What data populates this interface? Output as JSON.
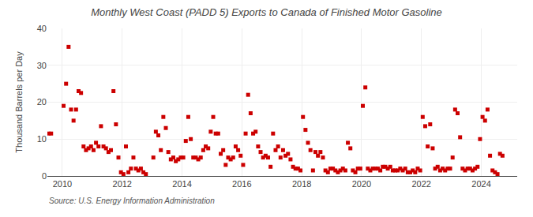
{
  "chart_data": {
    "type": "scatter",
    "title": "Monthly West Coast (PADD 5) Exports to Canada of Finished Motor Gasoline",
    "ylabel": "Thousand Barrels per Day",
    "annotations": [
      "Source: U.S. Energy Information Administration"
    ],
    "color": "#cc0000",
    "marker": "square",
    "grid": true,
    "xlim": [
      2009.5,
      2025.2
    ],
    "xticks": [
      2010,
      2012,
      2014,
      2016,
      2018,
      2020,
      2022,
      2024
    ],
    "ylim": [
      0,
      40
    ],
    "yticks": [
      0,
      10,
      20,
      30,
      40
    ],
    "x": [
      2009.541667,
      2009.625,
      2010.041667,
      2010.125,
      2010.208333,
      2010.291667,
      2010.375,
      2010.458333,
      2010.541667,
      2010.625,
      2010.708333,
      2010.791667,
      2010.875,
      2010.958333,
      2011.041667,
      2011.125,
      2011.208333,
      2011.291667,
      2011.375,
      2011.458333,
      2011.541667,
      2011.625,
      2011.708333,
      2011.791667,
      2011.875,
      2011.958333,
      2012.041667,
      2012.125,
      2012.208333,
      2012.291667,
      2012.375,
      2012.458333,
      2012.541667,
      2012.625,
      2012.708333,
      2012.791667,
      2013.041667,
      2013.125,
      2013.208333,
      2013.291667,
      2013.375,
      2013.458333,
      2013.541667,
      2013.625,
      2013.708333,
      2013.791667,
      2013.875,
      2013.958333,
      2014.041667,
      2014.125,
      2014.208333,
      2014.291667,
      2014.375,
      2014.458333,
      2014.541667,
      2014.625,
      2014.708333,
      2014.791667,
      2014.875,
      2014.958333,
      2015.041667,
      2015.125,
      2015.208333,
      2015.291667,
      2015.375,
      2015.458333,
      2015.541667,
      2015.625,
      2015.708333,
      2015.791667,
      2015.875,
      2015.958333,
      2016.041667,
      2016.125,
      2016.208333,
      2016.291667,
      2016.375,
      2016.458333,
      2016.541667,
      2016.625,
      2016.708333,
      2016.791667,
      2016.875,
      2016.958333,
      2017.041667,
      2017.125,
      2017.208333,
      2017.291667,
      2017.375,
      2017.458333,
      2017.541667,
      2017.625,
      2017.708333,
      2017.791667,
      2017.875,
      2017.958333,
      2018.041667,
      2018.125,
      2018.208333,
      2018.291667,
      2018.375,
      2018.458333,
      2018.541667,
      2018.625,
      2018.708333,
      2018.791667,
      2018.875,
      2018.958333,
      2019.041667,
      2019.125,
      2019.208333,
      2019.291667,
      2019.375,
      2019.458333,
      2019.541667,
      2019.625,
      2019.708333,
      2019.791667,
      2019.875,
      2019.958333,
      2020.041667,
      2020.125,
      2020.208333,
      2020.291667,
      2020.375,
      2020.458333,
      2020.541667,
      2020.625,
      2020.708333,
      2020.791667,
      2020.875,
      2020.958333,
      2021.041667,
      2021.125,
      2021.208333,
      2021.291667,
      2021.375,
      2021.458333,
      2021.541667,
      2021.625,
      2021.708333,
      2021.791667,
      2021.875,
      2021.958333,
      2022.041667,
      2022.125,
      2022.208333,
      2022.291667,
      2022.375,
      2022.458333,
      2022.541667,
      2022.625,
      2022.708333,
      2022.791667,
      2022.875,
      2022.958333,
      2023.041667,
      2023.125,
      2023.208333,
      2023.291667,
      2023.375,
      2023.458333,
      2023.541667,
      2023.625,
      2023.708333,
      2023.791667,
      2023.875,
      2023.958333,
      2024.041667,
      2024.125,
      2024.208333,
      2024.291667,
      2024.375,
      2024.458333,
      2024.541667,
      2024.625,
      2024.708333
    ],
    "values": [
      11.5,
      11.5,
      19.0,
      25.0,
      35.0,
      18.0,
      15.0,
      18.0,
      23.0,
      22.5,
      8.0,
      7.0,
      7.5,
      8.0,
      7.0,
      9.0,
      8.0,
      13.5,
      8.0,
      7.5,
      6.5,
      7.0,
      23.0,
      14.0,
      5.0,
      1.0,
      0.5,
      8.0,
      1.0,
      2.0,
      5.0,
      2.0,
      1.5,
      2.0,
      1.0,
      0.5,
      5.0,
      12.0,
      11.0,
      7.0,
      16.0,
      13.0,
      6.5,
      4.5,
      5.0,
      4.0,
      4.5,
      5.0,
      5.0,
      9.5,
      16.0,
      10.0,
      5.0,
      5.0,
      4.5,
      5.0,
      7.0,
      8.0,
      7.5,
      12.0,
      16.0,
      11.5,
      11.5,
      6.0,
      7.0,
      3.0,
      5.0,
      4.5,
      5.0,
      8.0,
      7.0,
      5.5,
      3.0,
      11.5,
      22.0,
      17.0,
      11.5,
      12.0,
      8.0,
      6.5,
      5.0,
      5.5,
      5.0,
      2.5,
      11.5,
      7.0,
      8.0,
      5.0,
      7.0,
      5.5,
      6.0,
      4.5,
      2.5,
      2.0,
      2.0,
      1.5,
      16.0,
      12.5,
      9.0,
      7.0,
      1.5,
      6.5,
      5.5,
      6.5,
      5.0,
      1.5,
      1.0,
      2.0,
      2.0,
      1.5,
      1.0,
      1.5,
      2.0,
      1.5,
      9.0,
      7.5,
      1.5,
      1.0,
      2.0,
      2.0,
      19.0,
      24.0,
      2.0,
      1.5,
      2.0,
      2.0,
      2.0,
      1.5,
      2.5,
      2.5,
      2.0,
      2.5,
      1.5,
      1.5,
      1.5,
      2.0,
      1.5,
      2.0,
      1.0,
      1.0,
      1.5,
      1.0,
      2.0,
      1.5,
      16.0,
      13.5,
      8.0,
      14.0,
      7.5,
      2.0,
      2.5,
      1.5,
      2.0,
      1.5,
      2.0,
      2.0,
      5.0,
      18.0,
      17.0,
      10.5,
      2.0,
      1.5,
      2.0,
      2.0,
      1.5,
      2.0,
      2.5,
      10.0,
      16.0,
      15.0,
      18.0,
      5.5,
      1.5,
      1.0,
      0.5,
      6.0,
      5.5
    ]
  }
}
